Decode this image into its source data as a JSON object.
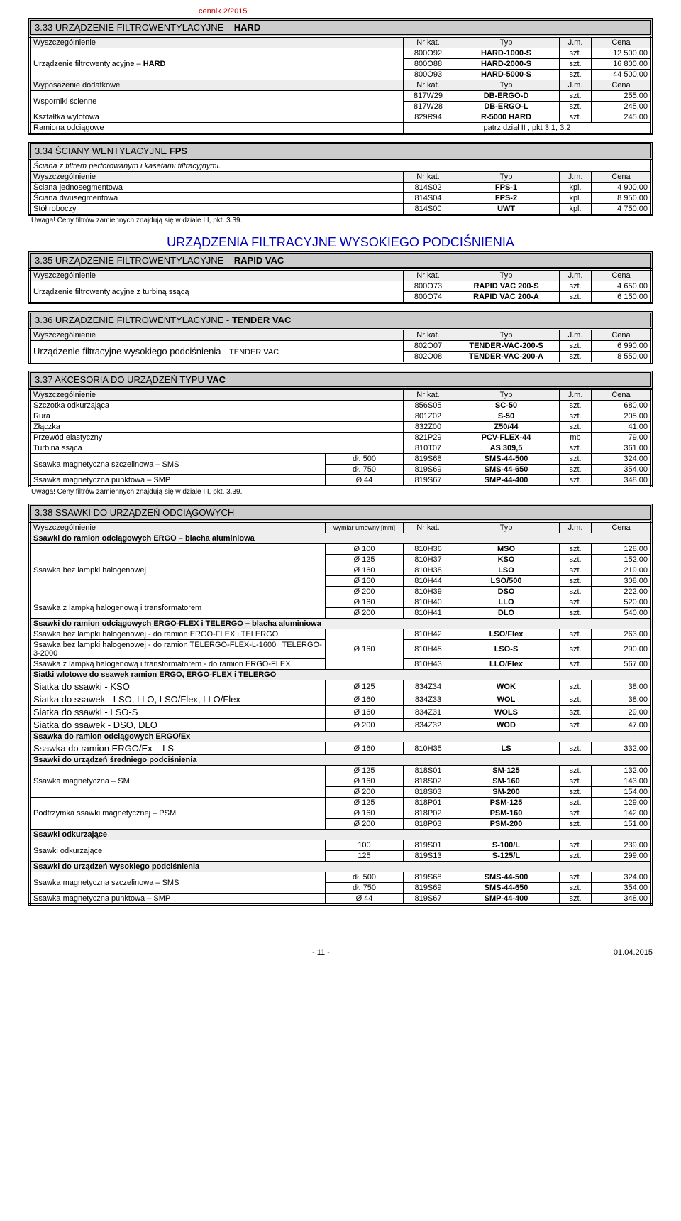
{
  "header": {
    "topLabel": "cennik 2/2015"
  },
  "colHeaders": {
    "wysz": "Wyszczególnienie",
    "nrkat": "Nr kat.",
    "typ": "Typ",
    "jm": "J.m.",
    "cena": "Cena",
    "wyposaz": "Wyposażenie dodatkowe",
    "wymiar": "wymiar umowny [mm]"
  },
  "s333": {
    "title_pre": "3.33 URZĄDZENIE FILTROWENTYLACYJNE – ",
    "title_bold": "HARD",
    "rows1": [
      {
        "desc": "Urządzenie filtrowentylacyjne – ",
        "bold": "HARD",
        "rowspan": 3,
        "items": [
          {
            "k": "800O92",
            "t": "HARD-1000-S",
            "u": "szt.",
            "c": "12 500,00"
          },
          {
            "k": "800O88",
            "t": "HARD-2000-S",
            "u": "szt.",
            "c": "16 800,00"
          },
          {
            "k": "800O93",
            "t": "HARD-5000-S",
            "u": "szt.",
            "c": "44 500,00"
          }
        ]
      }
    ],
    "rows2": [
      {
        "desc": "Wsporniki ścienne",
        "rowspan": 2,
        "items": [
          {
            "k": "817W29",
            "t": "DB-ERGO-D",
            "u": "szt.",
            "c": "255,00"
          },
          {
            "k": "817W28",
            "t": "DB-ERGO-L",
            "u": "szt.",
            "c": "245,00"
          }
        ]
      },
      {
        "desc": "Kształtka wylotowa",
        "rowspan": 1,
        "items": [
          {
            "k": "829R94",
            "t": "R-5000 HARD",
            "u": "szt.",
            "c": "245,00"
          }
        ]
      },
      {
        "desc": "Ramiona odciągowe",
        "note": "patrz dział II , pkt  3.1, 3.2"
      }
    ]
  },
  "s334": {
    "title": "3.34 ŚCIANY WENTYLACYJNE ",
    "title_bold": "FPS",
    "sub": "Ściana z filtrem perforowanym i kasetami filtracyjnymi.",
    "rows": [
      {
        "d": "Ściana jednosegmentowa",
        "k": "814S02",
        "t": "FPS-1",
        "u": "kpl.",
        "c": "4 900,00"
      },
      {
        "d": "Ściana dwusegmentowa",
        "k": "814S04",
        "t": "FPS-2",
        "u": "kpl.",
        "c": "8 950,00"
      },
      {
        "d": "Stół roboczy",
        "k": "814S00",
        "t": "UWT",
        "u": "kpl.",
        "c": "4 750,00"
      }
    ],
    "foot": "Uwaga! Ceny filtrów zamiennych znajdują się w dziale III, pkt. 3.39."
  },
  "bigTitle": "URZĄDZENIA FILTRACYJNE WYSOKIEGO PODCIŚNIENIA",
  "s335": {
    "title_pre": "3.35 URZĄDZENIE FILTROWENTYLACYJNE – ",
    "title_bold": "RAPID VAC",
    "rows": [
      {
        "d": "Urządzenie filtrowentylacyjne z turbiną ssącą",
        "rowspan": 2,
        "items": [
          {
            "k": "800O73",
            "t": "RAPID VAC 200-S",
            "u": "szt.",
            "c": "4 650,00"
          },
          {
            "k": "800O74",
            "t": "RAPID VAC 200-A",
            "u": "szt.",
            "c": "6 150,00"
          }
        ]
      }
    ]
  },
  "s336": {
    "title_pre": "3.36 URZĄDZENIE FILTROWENTYLACYJNE - ",
    "title_bold": "TENDER VAC",
    "rows": [
      {
        "d1": "Urządzenie filtracyjne wysokiego podciśnienia - ",
        "d2": "TENDER VAC",
        "rowspan": 2,
        "items": [
          {
            "k": "802O07",
            "t": "TENDER-VAC-200-S",
            "u": "szt.",
            "c": "6 990,00"
          },
          {
            "k": "802O08",
            "t": "TENDER-VAC-200-A",
            "u": "szt.",
            "c": "8 550,00"
          }
        ]
      }
    ]
  },
  "s337": {
    "title_pre": "3.37 AKCESORIA DO URZĄDZEŃ TYPU ",
    "title_bold": "VAC",
    "rows": [
      {
        "d": "Szczotka odkurzająca",
        "k": "856S05",
        "t": "SC-50",
        "u": "szt.",
        "c": "680,00"
      },
      {
        "d": "Rura",
        "k": "801Z02",
        "t": "S-50",
        "u": "szt.",
        "c": "205,00"
      },
      {
        "d": "Złączka",
        "k": "832Z00",
        "t": "Z50/44",
        "u": "szt.",
        "c": "41,00"
      },
      {
        "d": "Przewód elastyczny",
        "k": "821P29",
        "t": "PCV-FLEX-44",
        "u": "mb",
        "c": "79,00"
      },
      {
        "d": "Turbina ssąca",
        "k": "810T07",
        "t": "AS 309,5",
        "u": "szt.",
        "c": "361,00"
      }
    ],
    "sms": {
      "d": "Ssawka magnetyczna szczelinowa – SMS",
      "items": [
        {
          "w": "dł. 500",
          "k": "819S68",
          "t": "SMS-44-500",
          "u": "szt.",
          "c": "324,00"
        },
        {
          "w": "dł. 750",
          "k": "819S69",
          "t": "SMS-44-650",
          "u": "szt.",
          "c": "354,00"
        }
      ]
    },
    "smp": {
      "d": "Ssawka magnetyczna punktowa – SMP",
      "w": "Ø 44",
      "k": "819S67",
      "t": "SMP-44-400",
      "u": "szt.",
      "c": "348,00"
    },
    "foot": "Uwaga! Ceny filtrów zamiennych znajdują się w dziale III, pkt. 3.39."
  },
  "s338": {
    "title": "3.38 SSAWKI DO URZĄDZEŃ ODCIĄGOWYCH",
    "grp1": "Ssawki do ramion odciągowych ERGO – blacha aluminiowa",
    "bezlamp": {
      "d": "Ssawka bez lampki halogenowej",
      "items": [
        {
          "w": "Ø 100",
          "k": "810H36",
          "t": "MSO",
          "u": "szt.",
          "c": "128,00"
        },
        {
          "w": "Ø 125",
          "k": "810H37",
          "t": "KSO",
          "u": "szt.",
          "c": "152,00"
        },
        {
          "w": "Ø 160",
          "k": "810H38",
          "t": "LSO",
          "u": "szt.",
          "c": "219,00"
        },
        {
          "w": "Ø 160",
          "k": "810H44",
          "t": "LSO/500",
          "u": "szt.",
          "c": "308,00"
        },
        {
          "w": "Ø 200",
          "k": "810H39",
          "t": "DSO",
          "u": "szt.",
          "c": "222,00"
        }
      ]
    },
    "zlamp": {
      "d": "Ssawka z lampką halogenową i transformatorem",
      "items": [
        {
          "w": "Ø 160",
          "k": "810H40",
          "t": "LLO",
          "u": "szt.",
          "c": "520,00"
        },
        {
          "w": "Ø 200",
          "k": "810H41",
          "t": "DLO",
          "u": "szt.",
          "c": "540,00"
        }
      ]
    },
    "grp2": "Ssawki do ramion odciągowych ERGO-FLEX i TELERGO – blacha aluminiowa",
    "flex1": {
      "d": "Ssawka bez lampki halogenowej - do ramion ERGO-FLEX i TELERGO",
      "k": "810H42",
      "t": "LSO/Flex",
      "u": "szt.",
      "c": "263,00"
    },
    "flex2": {
      "d": "Ssawka bez lampki halogenowej - do ramion TELERGO-FLEX-L-1600 i TELERGO-3-2000",
      "w": "Ø 160",
      "k": "810H45",
      "t": "LSO-S",
      "u": "szt.",
      "c": "290,00"
    },
    "flex3": {
      "d": "Ssawka z lampką halogenową i transformatorem - do ramion ERGO-FLEX",
      "k": "810H43",
      "t": "LLO/Flex",
      "u": "szt.",
      "c": "567,00"
    },
    "grp3": "Siatki wlotowe do ssawek ramion ERGO,  ERGO-FLEX i TELERGO",
    "siatki": [
      {
        "d": "Siatka do ssawki - KSO",
        "w": "Ø 125",
        "k": "834Z34",
        "t": "WOK",
        "u": "szt.",
        "c": "38,00"
      },
      {
        "d": "Siatka do ssawek - LSO, LLO, LSO/Flex, LLO/Flex",
        "w": "Ø 160",
        "k": "834Z33",
        "t": "WOL",
        "u": "szt.",
        "c": "38,00"
      },
      {
        "d": "Siatka do ssawki - LSO-S",
        "w": "Ø 160",
        "k": "834Z31",
        "t": "WOLS",
        "u": "szt.",
        "c": "29,00"
      },
      {
        "d": "Siatka do ssawek - DSO, DLO",
        "w": "Ø 200",
        "k": "834Z32",
        "t": "WOD",
        "u": "szt.",
        "c": "47,00"
      }
    ],
    "grp4": "Ssawka do ramion odciągowych ERGO/Ex",
    "ergoex": {
      "d": "Ssawka do ramion  ERGO/Ex – LS",
      "w": "Ø 160",
      "k": "810H35",
      "t": "LS",
      "u": "szt.",
      "c": "332,00"
    },
    "grp5": "Ssawki do urządzeń średniego podciśnienia",
    "sm": {
      "d": "Ssawka magnetyczna – SM",
      "items": [
        {
          "w": "Ø 125",
          "k": "818S01",
          "t": "SM-125",
          "u": "szt.",
          "c": "132,00"
        },
        {
          "w": "Ø 160",
          "k": "818S02",
          "t": "SM-160",
          "u": "szt.",
          "c": "143,00"
        },
        {
          "w": "Ø 200",
          "k": "818S03",
          "t": "SM-200",
          "u": "szt.",
          "c": "154,00"
        }
      ]
    },
    "psm": {
      "d": "Podtrzymka ssawki magnetycznej – PSM",
      "items": [
        {
          "w": "Ø 125",
          "k": "818P01",
          "t": "PSM-125",
          "u": "szt.",
          "c": "129,00"
        },
        {
          "w": "Ø 160",
          "k": "818P02",
          "t": "PSM-160",
          "u": "szt.",
          "c": "142,00"
        },
        {
          "w": "Ø 200",
          "k": "818P03",
          "t": "PSM-200",
          "u": "szt.",
          "c": "151,00"
        }
      ]
    },
    "grp6": "Ssawki odkurzające",
    "odk": {
      "d": "Ssawki odkurzające",
      "items": [
        {
          "w": "100",
          "k": "819S01",
          "t": "S-100/L",
          "u": "szt.",
          "c": "239,00"
        },
        {
          "w": "125",
          "k": "819S13",
          "t": "S-125/L",
          "u": "szt.",
          "c": "299,00"
        }
      ]
    },
    "grp7": "Ssawki do urządzeń wysokiego  podciśnienia",
    "sms2": {
      "d": "Ssawka magnetyczna szczelinowa – SMS",
      "items": [
        {
          "w": "dł. 500",
          "k": "819S68",
          "t": "SMS-44-500",
          "u": "szt.",
          "c": "324,00"
        },
        {
          "w": "dł. 750",
          "k": "819S69",
          "t": "SMS-44-650",
          "u": "szt.",
          "c": "354,00"
        }
      ]
    },
    "smp2": {
      "d": "Ssawka magnetyczna punktowa – SMP",
      "w": "Ø 44",
      "k": "819S67",
      "t": "SMP-44-400",
      "u": "szt.",
      "c": "348,00"
    }
  },
  "footer": {
    "pagenum": "- 11 -",
    "date": "01.04.2015"
  }
}
